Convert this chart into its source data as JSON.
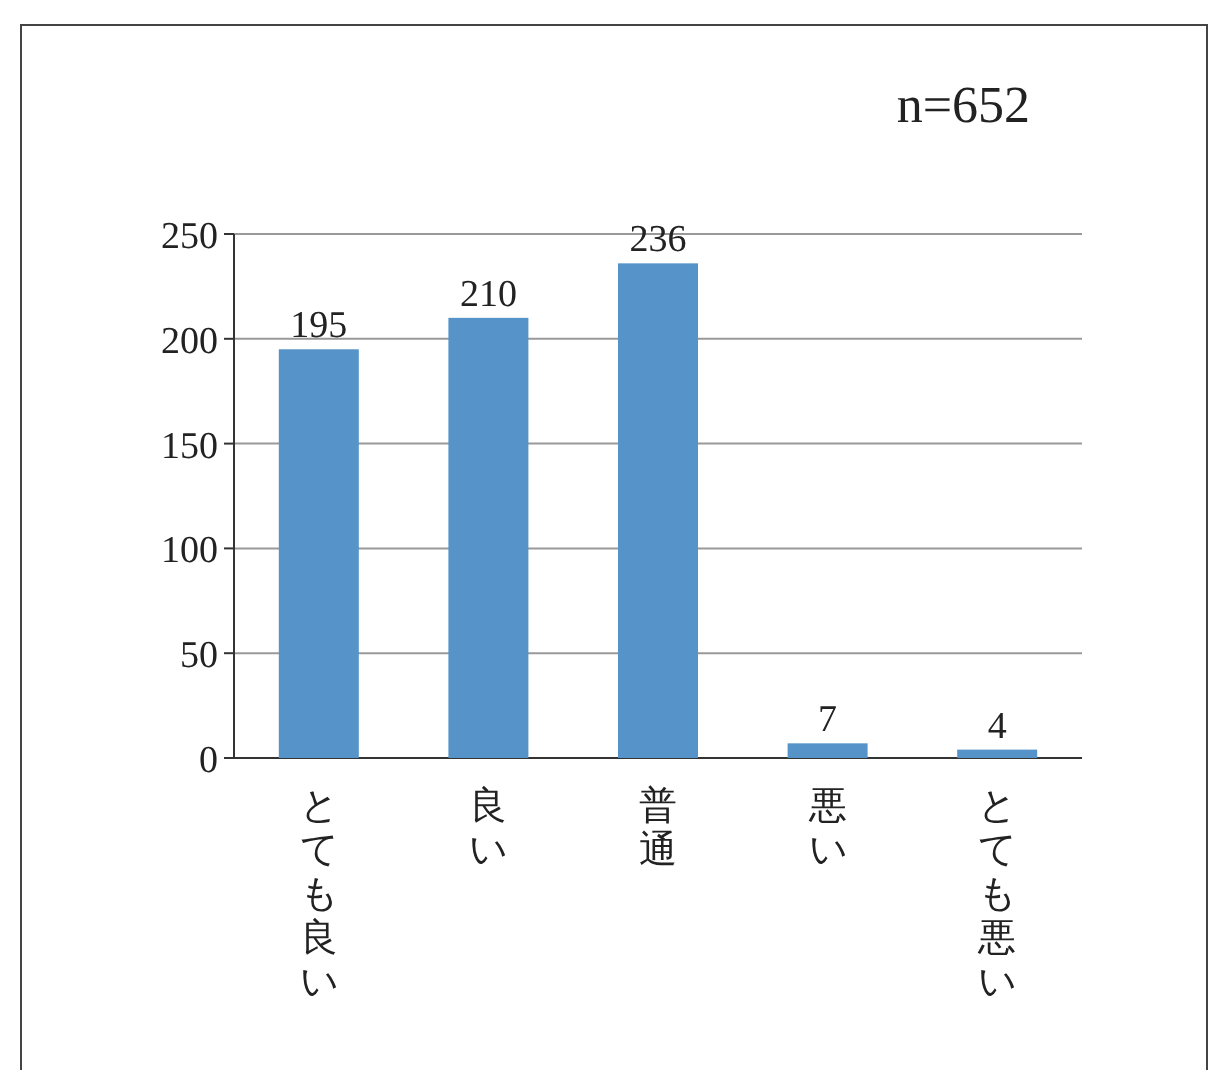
{
  "chart_data": {
    "type": "bar",
    "categories": [
      "とても良い",
      "良い",
      "普通",
      "悪い",
      "とても悪い"
    ],
    "values": [
      195,
      210,
      236,
      7,
      4
    ],
    "color": "#5593c8",
    "ylim": [
      0,
      250
    ],
    "yticks": [
      0,
      50,
      100,
      150,
      200,
      250
    ],
    "grid": "y",
    "data_labels": true,
    "annotations": [
      "n=652"
    ]
  }
}
